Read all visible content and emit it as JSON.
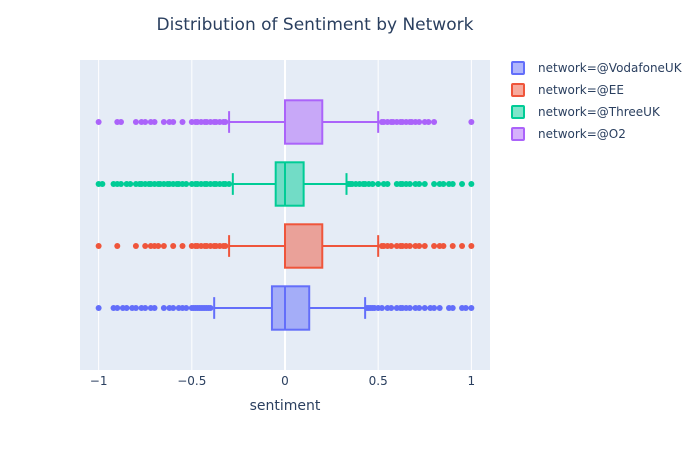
{
  "chart_data": {
    "type": "box",
    "orientation": "horizontal",
    "title": "Distribution of Sentiment by Network",
    "xlabel": "sentiment",
    "xlim": [
      -1.1,
      1.1
    ],
    "xticks": [
      {
        "value": -1,
        "label": "−1"
      },
      {
        "value": -0.5,
        "label": "−0.5"
      },
      {
        "value": 0,
        "label": "0"
      },
      {
        "value": 0.5,
        "label": "0.5"
      },
      {
        "value": 1,
        "label": "1"
      }
    ],
    "grid": true,
    "legend_position": "top-right",
    "series": [
      {
        "name": "network=@VodafoneUK",
        "color": "#636efa",
        "min": -0.38,
        "q1": -0.07,
        "median": 0.0,
        "q3": 0.13,
        "max": 0.43,
        "outliers": [
          -1,
          -0.92,
          -0.9,
          -0.87,
          -0.85,
          -0.82,
          -0.8,
          -0.77,
          -0.75,
          -0.72,
          -0.7,
          -0.65,
          -0.62,
          -0.6,
          -0.57,
          -0.55,
          -0.53,
          -0.5,
          -0.49,
          -0.48,
          -0.47,
          -0.46,
          -0.45,
          -0.44,
          -0.43,
          -0.42,
          -0.41,
          -0.4,
          0.44,
          0.45,
          0.46,
          0.47,
          0.48,
          0.5,
          0.52,
          0.55,
          0.57,
          0.6,
          0.62,
          0.63,
          0.65,
          0.67,
          0.7,
          0.72,
          0.75,
          0.78,
          0.8,
          0.83,
          0.88,
          0.9,
          0.95,
          0.97,
          1
        ]
      },
      {
        "name": "network=@EE",
        "color": "#ef553b",
        "min": -0.3,
        "q1": 0.0,
        "median": 0.0,
        "q3": 0.2,
        "max": 0.5,
        "outliers": [
          -1,
          -0.9,
          -0.8,
          -0.75,
          -0.72,
          -0.7,
          -0.68,
          -0.65,
          -0.6,
          -0.55,
          -0.5,
          -0.48,
          -0.47,
          -0.45,
          -0.43,
          -0.42,
          -0.4,
          -0.38,
          -0.37,
          -0.35,
          -0.33,
          -0.32,
          0.52,
          0.53,
          0.55,
          0.57,
          0.6,
          0.62,
          0.63,
          0.65,
          0.67,
          0.7,
          0.72,
          0.75,
          0.8,
          0.83,
          0.85,
          0.9,
          0.95,
          1
        ]
      },
      {
        "name": "network=@ThreeUK",
        "color": "#00cc96",
        "min": -0.28,
        "q1": -0.05,
        "median": 0.0,
        "q3": 0.1,
        "max": 0.33,
        "outliers": [
          -1,
          -0.98,
          -0.92,
          -0.9,
          -0.88,
          -0.85,
          -0.83,
          -0.8,
          -0.78,
          -0.77,
          -0.75,
          -0.73,
          -0.72,
          -0.7,
          -0.68,
          -0.67,
          -0.65,
          -0.63,
          -0.62,
          -0.6,
          -0.58,
          -0.57,
          -0.55,
          -0.53,
          -0.5,
          -0.48,
          -0.47,
          -0.45,
          -0.43,
          -0.42,
          -0.4,
          -0.38,
          -0.37,
          -0.35,
          -0.33,
          -0.32,
          -0.3,
          0.34,
          0.35,
          0.36,
          0.38,
          0.4,
          0.42,
          0.43,
          0.45,
          0.47,
          0.5,
          0.53,
          0.55,
          0.6,
          0.62,
          0.63,
          0.65,
          0.67,
          0.7,
          0.72,
          0.75,
          0.8,
          0.83,
          0.85,
          0.88,
          0.9,
          0.95,
          1
        ]
      },
      {
        "name": "network=@O2",
        "color": "#ab63fa",
        "min": -0.3,
        "q1": 0.0,
        "median": 0.0,
        "q3": 0.2,
        "max": 0.5,
        "outliers": [
          -1,
          -0.9,
          -0.88,
          -0.8,
          -0.77,
          -0.75,
          -0.72,
          -0.7,
          -0.65,
          -0.62,
          -0.6,
          -0.55,
          -0.5,
          -0.48,
          -0.47,
          -0.45,
          -0.43,
          -0.42,
          -0.4,
          -0.38,
          -0.37,
          -0.35,
          -0.33,
          -0.32,
          0.52,
          0.53,
          0.55,
          0.57,
          0.58,
          0.6,
          0.62,
          0.63,
          0.65,
          0.67,
          0.68,
          0.7,
          0.72,
          0.75,
          0.77,
          0.8,
          1
        ]
      }
    ]
  }
}
